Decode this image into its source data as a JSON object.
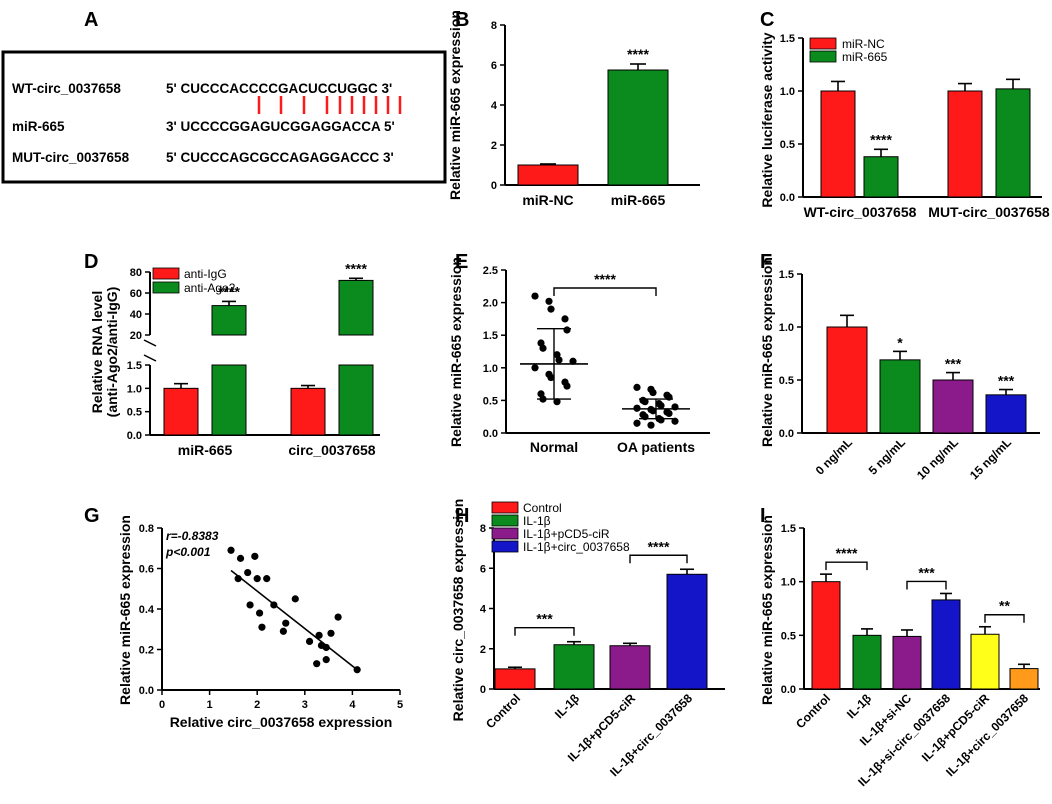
{
  "colors": {
    "red": "#ff1a1a",
    "green": "#0b8a1e",
    "purple": "#8b1a8b",
    "blue": "#1414c8",
    "yellow": "#ffff1a",
    "orange": "#ff9a1a",
    "black": "#000000"
  },
  "panels": {
    "A": {
      "letter": "A",
      "rows": [
        {
          "label": "WT-circ_0037658",
          "seq": "5' CUCCCACCCCGACUCCUGGC 3'"
        },
        {
          "label": "miR-665",
          "seq": "3' UCCCCGGAGUCGGAGGACCA 5'"
        },
        {
          "label": "MUT-circ_0037658",
          "seq": "5' CUCCCAGCGCCAGAGGACCC 3'"
        }
      ]
    },
    "B": {
      "letter": "B",
      "chart_data": {
        "type": "bar",
        "ylabel": "Relative miR-665 expression",
        "ylim": [
          0,
          8
        ],
        "yticks": [
          0,
          2,
          4,
          6,
          8
        ],
        "categories": [
          "miR-NC",
          "miR-665"
        ],
        "values": [
          1.0,
          5.75
        ],
        "errors": [
          0.05,
          0.3
        ],
        "colors": [
          "red",
          "green"
        ],
        "stars": [
          "",
          "****"
        ]
      }
    },
    "C": {
      "letter": "C",
      "chart_data": {
        "type": "bar",
        "ylabel": "Relative luciferase activity",
        "ylim": [
          0,
          1.5
        ],
        "yticks": [
          "0.0",
          "0.5",
          "1.0",
          "1.5"
        ],
        "categories": [
          "WT-circ_0037658",
          "MUT-circ_0037658"
        ],
        "series": [
          {
            "name": "miR-NC",
            "color": "red",
            "values": [
              1.0,
              1.0
            ],
            "errors": [
              0.09,
              0.07
            ]
          },
          {
            "name": "miR-665",
            "color": "green",
            "values": [
              0.38,
              1.02
            ],
            "errors": [
              0.07,
              0.09
            ]
          }
        ],
        "stars": [
          [
            "",
            "****"
          ],
          [
            "",
            ""
          ]
        ]
      }
    },
    "D": {
      "letter": "D",
      "chart_data": {
        "type": "bar",
        "ylabel": "Relative RNA level",
        "ylabel2": "(anti-Ago2/anti-IgG)",
        "note": "broken y-axis",
        "lower_range": [
          0,
          1.5
        ],
        "lower_ticks": [
          "0.0",
          "0.5",
          "1.0",
          "1.5"
        ],
        "upper_range": [
          20,
          80
        ],
        "upper_ticks": [
          "20",
          "40",
          "60",
          "80"
        ],
        "categories": [
          "miR-665",
          "circ_0037658"
        ],
        "series": [
          {
            "name": "anti-IgG",
            "color": "red",
            "values": [
              1.0,
              1.0
            ],
            "errors": [
              0.1,
              0.06
            ]
          },
          {
            "name": "anti-Ago2",
            "color": "green",
            "values": [
              48,
              72
            ],
            "errors": [
              4,
              2
            ]
          }
        ],
        "stars": [
          [
            "",
            "****"
          ],
          [
            "",
            "****"
          ]
        ]
      }
    },
    "E": {
      "letter": "E",
      "chart_data": {
        "type": "scatter",
        "ylabel": "Relative miR-665 expression",
        "ylim": [
          0,
          2.5
        ],
        "yticks": [
          "0.0",
          "0.5",
          "1.0",
          "1.5",
          "2.0",
          "2.5"
        ],
        "categories": [
          "Normal",
          "OA patients"
        ],
        "groups": [
          {
            "name": "Normal",
            "mean": 1.06,
            "sd_low": 0.52,
            "sd_high": 1.6,
            "points": [
              2.1,
              2.02,
              1.9,
              1.75,
              1.58,
              1.38,
              1.3,
              1.2,
              1.12,
              1.1,
              1.0,
              0.9,
              0.85,
              0.78,
              0.72,
              0.6,
              0.52,
              0.48
            ]
          },
          {
            "name": "OA patients",
            "mean": 0.37,
            "sd_low": 0.22,
            "sd_high": 0.52,
            "points": [
              0.7,
              0.67,
              0.62,
              0.58,
              0.55,
              0.5,
              0.48,
              0.45,
              0.42,
              0.4,
              0.38,
              0.36,
              0.34,
              0.32,
              0.3,
              0.28,
              0.25,
              0.22,
              0.2,
              0.18,
              0.15,
              0.12
            ]
          }
        ],
        "comparison": "****"
      }
    },
    "F": {
      "letter": "F",
      "chart_data": {
        "type": "bar",
        "ylabel": "Relative miR-665 expression",
        "ylim": [
          0,
          1.5
        ],
        "yticks": [
          "0.0",
          "0.5",
          "1.0",
          "1.5"
        ],
        "categories": [
          "0 ng/mL",
          "5 ng/mL",
          "10 ng/mL",
          "15 ng/mL"
        ],
        "values": [
          1.0,
          0.69,
          0.5,
          0.36
        ],
        "errors": [
          0.11,
          0.08,
          0.07,
          0.05
        ],
        "colors": [
          "red",
          "green",
          "purple",
          "blue"
        ],
        "stars": [
          "",
          "*",
          "***",
          "***"
        ]
      }
    },
    "G": {
      "letter": "G",
      "chart_data": {
        "type": "scatter",
        "xlabel": "Relative circ_0037658 expression",
        "ylabel": "Relative miR-665 expression",
        "xlim": [
          0,
          5
        ],
        "ylim": [
          0,
          0.8
        ],
        "xticks": [
          "0",
          "1",
          "2",
          "3",
          "4",
          "5"
        ],
        "yticks": [
          "0.0",
          "0.2",
          "0.4",
          "0.6",
          "0.8"
        ],
        "annotation_r": "r=-0.8383",
        "annotation_p": "p<0.001",
        "points": [
          [
            1.45,
            0.69
          ],
          [
            1.6,
            0.55
          ],
          [
            1.65,
            0.65
          ],
          [
            1.8,
            0.58
          ],
          [
            1.85,
            0.42
          ],
          [
            1.95,
            0.66
          ],
          [
            2.0,
            0.55
          ],
          [
            2.05,
            0.38
          ],
          [
            2.1,
            0.31
          ],
          [
            2.2,
            0.55
          ],
          [
            2.35,
            0.42
          ],
          [
            2.55,
            0.29
          ],
          [
            2.6,
            0.33
          ],
          [
            2.8,
            0.45
          ],
          [
            3.1,
            0.24
          ],
          [
            3.25,
            0.13
          ],
          [
            3.3,
            0.27
          ],
          [
            3.35,
            0.22
          ],
          [
            3.45,
            0.21
          ],
          [
            3.45,
            0.15
          ],
          [
            3.55,
            0.28
          ],
          [
            3.7,
            0.36
          ],
          [
            4.1,
            0.1
          ]
        ],
        "regression": [
          [
            1.45,
            0.59
          ],
          [
            4.1,
            0.1
          ]
        ]
      }
    },
    "H": {
      "letter": "H",
      "chart_data": {
        "type": "bar",
        "ylabel": "Relative circ_0037658 expression",
        "ylim": [
          0,
          8
        ],
        "yticks": [
          "0",
          "2",
          "4",
          "6",
          "8"
        ],
        "categories": [
          "Control",
          "IL-1β",
          "IL-1β+pCD5-ciR",
          "IL-1β+circ_0037658"
        ],
        "values": [
          1.0,
          2.2,
          2.15,
          5.7
        ],
        "errors": [
          0.08,
          0.15,
          0.12,
          0.25
        ],
        "colors": [
          "red",
          "green",
          "purple",
          "blue"
        ],
        "legend": [
          "Control",
          "IL-1β",
          "IL-1β+pCD5-ciR",
          "IL-1β+circ_0037658"
        ],
        "brackets": [
          {
            "from": 0,
            "to": 1,
            "label": "***"
          },
          {
            "from": 2,
            "to": 3,
            "label": "****"
          }
        ]
      }
    },
    "I": {
      "letter": "I",
      "chart_data": {
        "type": "bar",
        "ylabel": "Relative miR-665 expression",
        "ylim": [
          0,
          1.5
        ],
        "yticks": [
          "0.0",
          "0.5",
          "1.0",
          "1.5"
        ],
        "categories": [
          "Control",
          "IL-1β",
          "IL-1β+si-NC",
          "IL-1β+si-circ_0037658",
          "IL-1β+pCD5-ciR",
          "IL-1β+circ_0037658"
        ],
        "values": [
          1.0,
          0.5,
          0.49,
          0.83,
          0.51,
          0.19
        ],
        "errors": [
          0.07,
          0.06,
          0.06,
          0.06,
          0.07,
          0.04
        ],
        "colors": [
          "red",
          "green",
          "purple",
          "blue",
          "yellow",
          "orange"
        ],
        "brackets": [
          {
            "from": 0,
            "to": 1,
            "label": "****"
          },
          {
            "from": 2,
            "to": 3,
            "label": "***"
          },
          {
            "from": 4,
            "to": 5,
            "label": "**"
          }
        ]
      }
    }
  }
}
